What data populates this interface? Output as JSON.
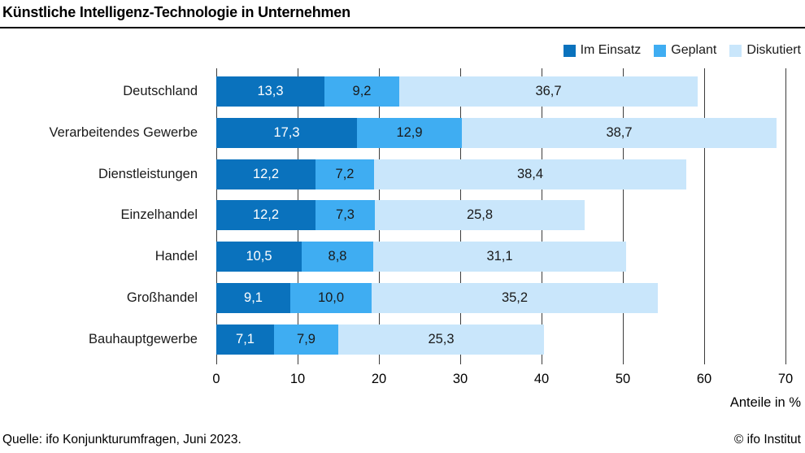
{
  "title": "Künstliche Intelligenz-Technologie in Unternehmen",
  "footer": {
    "source": "Quelle: ifo Konjunkturumfragen, Juni 2023.",
    "copyright": "© ifo Institut"
  },
  "chart_data": {
    "type": "bar",
    "orientation": "horizontal",
    "stacked": true,
    "title": "Künstliche Intelligenz-Technologie in Unternehmen",
    "xlabel": "Anteile in %",
    "ylabel": "",
    "xlim": [
      0,
      70
    ],
    "xticks": [
      0,
      10,
      20,
      30,
      40,
      50,
      60,
      70
    ],
    "grid": true,
    "legend_position": "top-right",
    "legend": [
      "Im Einsatz",
      "Geplant",
      "Diskutiert"
    ],
    "categories": [
      "Deutschland",
      "Verarbeitendes Gewerbe",
      "Dienstleistungen",
      "Einzelhandel",
      "Handel",
      "Großhandel",
      "Bauhauptgewerbe"
    ],
    "series": [
      {
        "name": "Im Einsatz",
        "color": "#0a72bd",
        "label_color": "#ffffff",
        "values": [
          13.3,
          17.3,
          12.2,
          12.2,
          10.5,
          9.1,
          7.1
        ]
      },
      {
        "name": "Geplant",
        "color": "#3fadf2",
        "label_color": "#1a1a1a",
        "values": [
          9.2,
          12.9,
          7.2,
          7.3,
          8.8,
          10.0,
          7.9
        ]
      },
      {
        "name": "Diskutiert",
        "color": "#c9e6fb",
        "label_color": "#1a1a1a",
        "values": [
          36.7,
          38.7,
          38.4,
          25.8,
          31.1,
          35.2,
          25.3
        ]
      }
    ],
    "value_decimal_separator": ",",
    "colors": {
      "grid": "#3c3c3c",
      "title_rule": "#000000",
      "background": "#ffffff"
    }
  }
}
